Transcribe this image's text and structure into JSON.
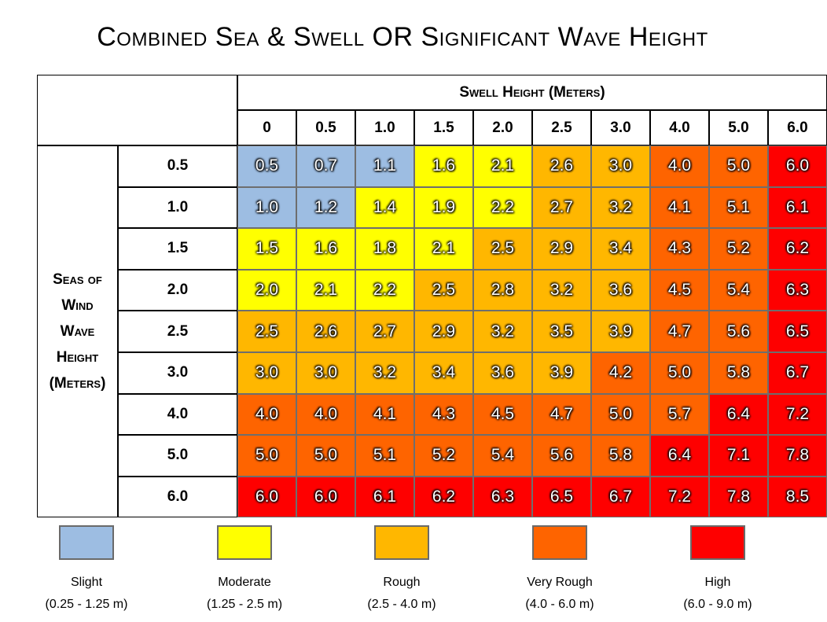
{
  "chart_data": {
    "type": "table",
    "title": "Combined Sea & Swell OR Significant Wave Height",
    "column_header": "Swell Height (Meters)",
    "row_header_lines": [
      "Seas of",
      "Wind",
      "Wave",
      "Height",
      "(Meters)"
    ],
    "columns": [
      "0",
      "0.5",
      "1.0",
      "1.5",
      "2.0",
      "2.5",
      "3.0",
      "4.0",
      "5.0",
      "6.0"
    ],
    "rows": [
      {
        "label": "0.5",
        "values": [
          "0.5",
          "0.7",
          "1.1",
          "1.6",
          "2.1",
          "2.6",
          "3.0",
          "4.0",
          "5.0",
          "6.0"
        ],
        "levels": [
          0,
          0,
          0,
          1,
          1,
          2,
          2,
          3,
          3,
          4
        ]
      },
      {
        "label": "1.0",
        "values": [
          "1.0",
          "1.2",
          "1.4",
          "1.9",
          "2.2",
          "2.7",
          "3.2",
          "4.1",
          "5.1",
          "6.1"
        ],
        "levels": [
          0,
          0,
          1,
          1,
          1,
          2,
          2,
          3,
          3,
          4
        ]
      },
      {
        "label": "1.5",
        "values": [
          "1.5",
          "1.6",
          "1.8",
          "2.1",
          "2.5",
          "2.9",
          "3.4",
          "4.3",
          "5.2",
          "6.2"
        ],
        "levels": [
          1,
          1,
          1,
          1,
          2,
          2,
          2,
          3,
          3,
          4
        ]
      },
      {
        "label": "2.0",
        "values": [
          "2.0",
          "2.1",
          "2.2",
          "2.5",
          "2.8",
          "3.2",
          "3.6",
          "4.5",
          "5.4",
          "6.3"
        ],
        "levels": [
          1,
          1,
          1,
          2,
          2,
          2,
          2,
          3,
          3,
          4
        ]
      },
      {
        "label": "2.5",
        "values": [
          "2.5",
          "2.6",
          "2.7",
          "2.9",
          "3.2",
          "3.5",
          "3.9",
          "4.7",
          "5.6",
          "6.5"
        ],
        "levels": [
          2,
          2,
          2,
          2,
          2,
          2,
          2,
          3,
          3,
          4
        ]
      },
      {
        "label": "3.0",
        "values": [
          "3.0",
          "3.0",
          "3.2",
          "3.4",
          "3.6",
          "3.9",
          "4.2",
          "5.0",
          "5.8",
          "6.7"
        ],
        "levels": [
          2,
          2,
          2,
          2,
          2,
          2,
          3,
          3,
          3,
          4
        ]
      },
      {
        "label": "4.0",
        "values": [
          "4.0",
          "4.0",
          "4.1",
          "4.3",
          "4.5",
          "4.7",
          "5.0",
          "5.7",
          "6.4",
          "7.2"
        ],
        "levels": [
          3,
          3,
          3,
          3,
          3,
          3,
          3,
          3,
          4,
          4
        ]
      },
      {
        "label": "5.0",
        "values": [
          "5.0",
          "5.0",
          "5.1",
          "5.2",
          "5.4",
          "5.6",
          "5.8",
          "6.4",
          "7.1",
          "7.8"
        ],
        "levels": [
          3,
          3,
          3,
          3,
          3,
          3,
          3,
          4,
          4,
          4
        ]
      },
      {
        "label": "6.0",
        "values": [
          "6.0",
          "6.0",
          "6.1",
          "6.2",
          "6.3",
          "6.5",
          "6.7",
          "7.2",
          "7.8",
          "8.5"
        ],
        "levels": [
          4,
          4,
          4,
          4,
          4,
          4,
          4,
          4,
          4,
          4
        ]
      }
    ],
    "legend": [
      {
        "label": "Slight",
        "range": "(0.25 - 1.25 m)",
        "color": "#9dbde2"
      },
      {
        "label": "Moderate",
        "range": "(1.25 - 2.5 m)",
        "color": "#ffff00"
      },
      {
        "label": "Rough",
        "range": "(2.5 - 4.0 m)",
        "color": "#ffb700"
      },
      {
        "label": "Very Rough",
        "range": "(4.0 - 6.0 m)",
        "color": "#fe6400"
      },
      {
        "label": "High",
        "range": "(6.0 - 9.0 m)",
        "color": "#fe0000"
      }
    ]
  }
}
